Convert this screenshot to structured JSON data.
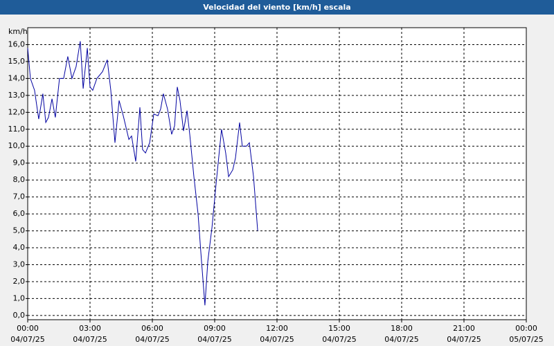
{
  "chart_data": {
    "type": "line",
    "title": "Velocidad del viento [km/h] escala",
    "y_unit": "km/h",
    "x": [
      0,
      0.13,
      0.33,
      0.53,
      0.73,
      0.87,
      1.0,
      1.17,
      1.33,
      1.53,
      1.73,
      1.93,
      2.13,
      2.33,
      2.53,
      2.67,
      2.87,
      3.0,
      3.13,
      3.33,
      3.6,
      3.83,
      4.0,
      4.2,
      4.4,
      4.6,
      4.87,
      5.0,
      5.2,
      5.4,
      5.53,
      5.67,
      5.87,
      6.07,
      6.27,
      6.4,
      6.53,
      6.73,
      6.93,
      7.07,
      7.2,
      7.33,
      7.5,
      7.67,
      7.8,
      8.0,
      8.2,
      8.33,
      8.53,
      8.67,
      8.87,
      9.07,
      9.33,
      9.53,
      9.67,
      9.87,
      10.0,
      10.2,
      10.33,
      10.53,
      10.67,
      10.87,
      11.07
    ],
    "values": [
      15.8,
      14.0,
      13.3,
      11.6,
      13.1,
      11.4,
      11.7,
      12.8,
      11.7,
      14.0,
      14.0,
      15.3,
      14.0,
      14.7,
      16.2,
      13.4,
      15.8,
      13.5,
      13.3,
      14.0,
      14.4,
      15.1,
      13.3,
      10.2,
      12.7,
      11.8,
      10.4,
      10.6,
      9.1,
      12.3,
      9.8,
      9.6,
      10.2,
      11.9,
      11.8,
      12.2,
      13.1,
      12.2,
      10.7,
      11.2,
      13.5,
      12.7,
      10.9,
      12.1,
      10.7,
      8.2,
      6.0,
      3.8,
      0.6,
      3.2,
      5.2,
      7.8,
      11.0,
      9.6,
      8.2,
      8.6,
      9.3,
      11.4,
      10.0,
      10.0,
      10.2,
      8.2,
      5.0
    ],
    "color": "#0000a0",
    "xlim": [
      0,
      24
    ],
    "ylim": [
      -0.25,
      17.0
    ],
    "xticks": [
      {
        "value": 0,
        "label": [
          "00:00",
          "04/07/25"
        ]
      },
      {
        "value": 3,
        "label": [
          "03:00",
          "04/07/25"
        ]
      },
      {
        "value": 6,
        "label": [
          "06:00",
          "04/07/25"
        ]
      },
      {
        "value": 9,
        "label": [
          "09:00",
          "04/07/25"
        ]
      },
      {
        "value": 12,
        "label": [
          "12:00",
          "04/07/25"
        ]
      },
      {
        "value": 15,
        "label": [
          "15:00",
          "04/07/25"
        ]
      },
      {
        "value": 18,
        "label": [
          "18:00",
          "04/07/25"
        ]
      },
      {
        "value": 21,
        "label": [
          "21:00",
          "04/07/25"
        ]
      },
      {
        "value": 24,
        "label": [
          "00:00",
          "05/07/25"
        ]
      }
    ],
    "yticks": [
      {
        "value": 0,
        "label": "0,0"
      },
      {
        "value": 1,
        "label": "1,0"
      },
      {
        "value": 2,
        "label": "2,0"
      },
      {
        "value": 3,
        "label": "3,0"
      },
      {
        "value": 4,
        "label": "4,0"
      },
      {
        "value": 5,
        "label": "5,0"
      },
      {
        "value": 6,
        "label": "6,0"
      },
      {
        "value": 7,
        "label": "7,0"
      },
      {
        "value": 8,
        "label": "8,0"
      },
      {
        "value": 9,
        "label": "9,0"
      },
      {
        "value": 10,
        "label": "10,0"
      },
      {
        "value": 11,
        "label": "11,0"
      },
      {
        "value": 12,
        "label": "12,0"
      },
      {
        "value": 13,
        "label": "13,0"
      },
      {
        "value": 14,
        "label": "14,0"
      },
      {
        "value": 15,
        "label": "15,0"
      },
      {
        "value": 16,
        "label": "16,0"
      }
    ],
    "grid": true
  }
}
